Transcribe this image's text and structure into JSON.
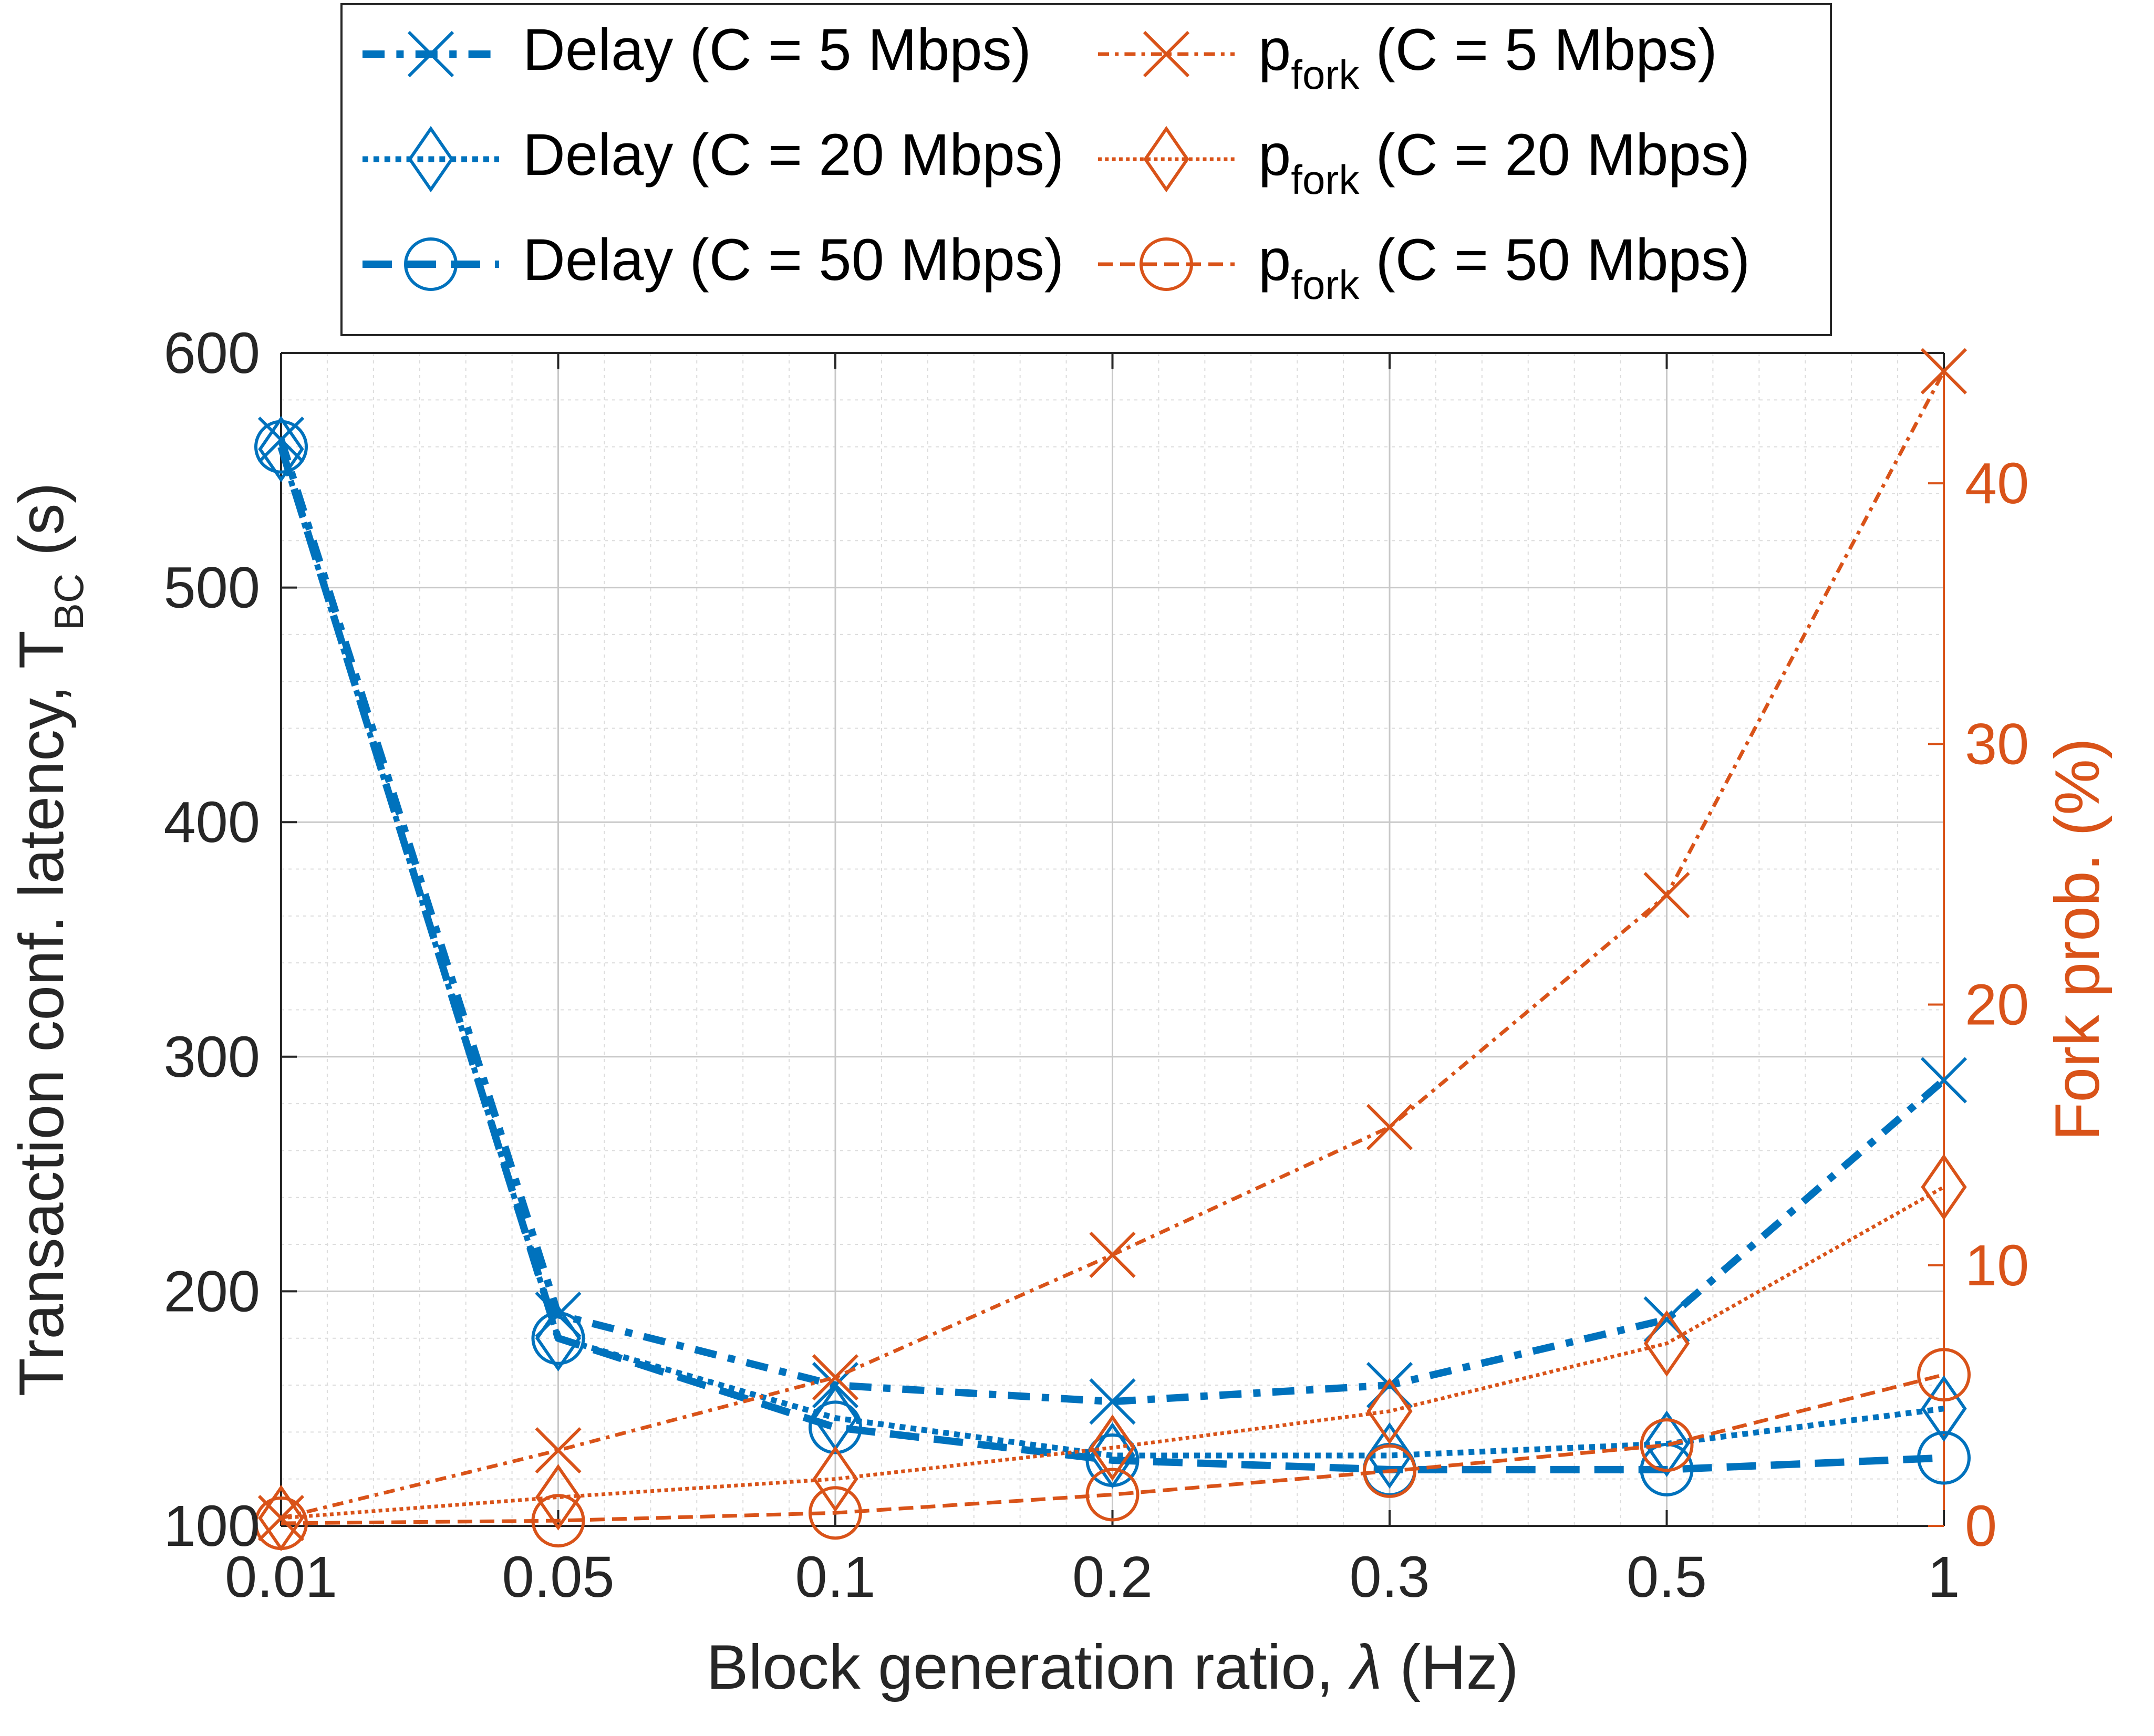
{
  "chart_data": {
    "type": "line",
    "x_ticks": [
      "0.01",
      "0.05",
      "0.1",
      "0.2",
      "0.3",
      "0.5",
      "1"
    ],
    "x_axis_label": {
      "main": "Block generation ratio, ",
      "symbol": "λ",
      "tail": " (Hz)"
    },
    "y_left": {
      "label_main": "Transaction conf. latency, T",
      "label_sub": "BC",
      "label_tail": " (s)",
      "ticks": [
        "100",
        "200",
        "300",
        "400",
        "500",
        "600"
      ],
      "ylim": [
        100,
        600
      ],
      "color": "#262626"
    },
    "y_right": {
      "label": "Fork prob. (%)",
      "ticks": [
        "0",
        "10",
        "20",
        "30",
        "40"
      ],
      "ylim": [
        0,
        45
      ],
      "color": "#D95319"
    },
    "grid": true,
    "minor_grid": true,
    "legend_position": "top-center, above plot",
    "colors": {
      "delay": "#0072BD",
      "fork": "#D95319"
    },
    "series": [
      {
        "name_main": "Delay (C = 5 Mbps)",
        "name_sub": "",
        "name_tail": "",
        "axis": "left",
        "marker": "x",
        "dash": "dashdot",
        "width": 14,
        "values": [
          563,
          190,
          160,
          153,
          160,
          188,
          290
        ]
      },
      {
        "name_main": "Delay (C = 20 Mbps)",
        "name_sub": "",
        "name_tail": "",
        "axis": "left",
        "marker": "diamond",
        "dash": "dotted",
        "width": 11,
        "values": [
          559,
          180,
          146,
          130,
          130,
          135,
          150
        ]
      },
      {
        "name_main": "Delay (C = 50 Mbps)",
        "name_sub": "",
        "name_tail": "",
        "axis": "left",
        "marker": "circle",
        "dash": "dashed",
        "width": 14,
        "values": [
          560,
          180,
          142,
          128,
          124,
          124,
          129
        ]
      },
      {
        "name_main": "p",
        "name_sub": "fork",
        "name_tail": " (C = 5 Mbps)",
        "axis": "right",
        "marker": "x",
        "dash": "dashdot",
        "width": 7,
        "values": [
          0.3,
          2.9,
          5.7,
          10.4,
          15.3,
          24.2,
          44.3
        ]
      },
      {
        "name_main": "p",
        "name_sub": "fork",
        "name_tail": " (C = 20 Mbps)",
        "axis": "right",
        "marker": "diamond",
        "dash": "dotted",
        "width": 7,
        "values": [
          0.3,
          1.1,
          1.8,
          3.0,
          4.4,
          7.0,
          13.0
        ]
      },
      {
        "name_main": "p",
        "name_sub": "fork",
        "name_tail": " (C = 50 Mbps)",
        "axis": "right",
        "marker": "circle",
        "dash": "dashed",
        "width": 7,
        "values": [
          0.1,
          0.2,
          0.5,
          1.2,
          2.1,
          3.1,
          5.8
        ]
      }
    ]
  }
}
